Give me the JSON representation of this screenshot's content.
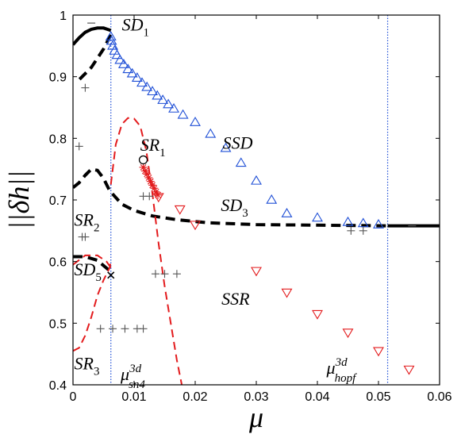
{
  "chart_data": {
    "type": "scatter",
    "xlabel": "μ",
    "ylabel": "||δh||",
    "xlim": [
      0,
      0.06
    ],
    "ylim": [
      0.4,
      1.0
    ],
    "xticks": [
      0,
      0.01,
      0.02,
      0.03,
      0.04,
      0.05,
      0.06
    ],
    "xtick_labels": [
      "0",
      "0.01",
      "0.02",
      "0.03",
      "0.04",
      "0.05",
      "0.06"
    ],
    "yticks": [
      0.4,
      0.5,
      0.6,
      0.7,
      0.8,
      0.9,
      1.0
    ],
    "ytick_labels": [
      "0.4",
      "0.5",
      "0.6",
      "0.7",
      "0.8",
      "0.9",
      "1"
    ],
    "grid": false,
    "curves": [
      {
        "style": "solid",
        "color": "#000000",
        "points": [
          [
            0.0,
            0.952
          ],
          [
            0.001,
            0.963
          ],
          [
            0.002,
            0.972
          ],
          [
            0.003,
            0.977
          ],
          [
            0.004,
            0.979
          ],
          [
            0.005,
            0.979
          ],
          [
            0.0062,
            0.975
          ]
        ]
      },
      {
        "style": "dashed",
        "color": "#000000",
        "points": [
          [
            0.0062,
            0.968
          ],
          [
            0.005,
            0.945
          ],
          [
            0.004,
            0.93
          ],
          [
            0.003,
            0.915
          ],
          [
            0.0015,
            0.9
          ],
          [
            0.0005,
            0.89
          ]
        ]
      },
      {
        "style": "dashed",
        "color": "#000000",
        "points": [
          [
            0.0,
            0.72
          ],
          [
            0.001,
            0.728
          ],
          [
            0.002,
            0.74
          ],
          [
            0.003,
            0.75
          ],
          [
            0.004,
            0.748
          ],
          [
            0.005,
            0.735
          ],
          [
            0.006,
            0.715
          ],
          [
            0.008,
            0.693
          ],
          [
            0.01,
            0.683
          ],
          [
            0.013,
            0.674
          ],
          [
            0.017,
            0.668
          ],
          [
            0.022,
            0.663
          ],
          [
            0.03,
            0.66
          ],
          [
            0.04,
            0.659
          ],
          [
            0.0515,
            0.658
          ]
        ]
      },
      {
        "style": "solid",
        "color": "#000000",
        "points": [
          [
            0.0515,
            0.658
          ],
          [
            0.06,
            0.658
          ]
        ]
      },
      {
        "style": "dashed",
        "color": "#000000",
        "points": [
          [
            0.0,
            0.608
          ],
          [
            0.002,
            0.608
          ],
          [
            0.004,
            0.602
          ],
          [
            0.006,
            0.585
          ]
        ]
      },
      {
        "style": "dashed",
        "color": "#e31a1c",
        "points": [
          [
            0.0062,
            0.725
          ],
          [
            0.007,
            0.79
          ],
          [
            0.008,
            0.823
          ],
          [
            0.009,
            0.833
          ],
          [
            0.01,
            0.832
          ],
          [
            0.011,
            0.82
          ],
          [
            0.012,
            0.78
          ],
          [
            0.013,
            0.71
          ],
          [
            0.014,
            0.63
          ],
          [
            0.015,
            0.56
          ],
          [
            0.016,
            0.5
          ],
          [
            0.017,
            0.44
          ],
          [
            0.0178,
            0.4
          ]
        ]
      },
      {
        "style": "dashed",
        "color": "#e31a1c",
        "points": [
          [
            0.0,
            0.455
          ],
          [
            0.001,
            0.46
          ],
          [
            0.002,
            0.48
          ],
          [
            0.003,
            0.51
          ],
          [
            0.004,
            0.545
          ],
          [
            0.005,
            0.57
          ],
          [
            0.006,
            0.59
          ],
          [
            0.0062,
            0.6
          ]
        ]
      },
      {
        "style": "dashed",
        "color": "#e31a1c",
        "points": [
          [
            0.0,
            0.595
          ],
          [
            0.002,
            0.61
          ],
          [
            0.004,
            0.61
          ],
          [
            0.0055,
            0.6
          ],
          [
            0.0062,
            0.59
          ]
        ]
      }
    ],
    "series": [
      {
        "marker": "triangle-up",
        "color": "#1f4fd6",
        "points": [
          [
            0.0062,
            0.965
          ],
          [
            0.0063,
            0.958
          ],
          [
            0.0065,
            0.95
          ],
          [
            0.0068,
            0.942
          ],
          [
            0.0072,
            0.935
          ],
          [
            0.0077,
            0.927
          ],
          [
            0.0083,
            0.92
          ],
          [
            0.009,
            0.912
          ],
          [
            0.0097,
            0.905
          ],
          [
            0.0105,
            0.898
          ],
          [
            0.0113,
            0.89
          ],
          [
            0.0121,
            0.883
          ],
          [
            0.013,
            0.876
          ],
          [
            0.0138,
            0.869
          ],
          [
            0.0147,
            0.862
          ],
          [
            0.0156,
            0.855
          ],
          [
            0.0165,
            0.848
          ],
          [
            0.018,
            0.838
          ],
          [
            0.02,
            0.826
          ],
          [
            0.0225,
            0.807
          ],
          [
            0.025,
            0.784
          ],
          [
            0.0275,
            0.76
          ],
          [
            0.03,
            0.731
          ],
          [
            0.0325,
            0.7
          ],
          [
            0.035,
            0.678
          ],
          [
            0.04,
            0.671
          ],
          [
            0.045,
            0.664
          ],
          [
            0.0475,
            0.662
          ],
          [
            0.05,
            0.66
          ]
        ]
      },
      {
        "marker": "asterisk",
        "color": "#e31a1c",
        "points": [
          [
            0.0115,
            0.753
          ],
          [
            0.0118,
            0.747
          ],
          [
            0.0121,
            0.742
          ],
          [
            0.0124,
            0.736
          ],
          [
            0.0127,
            0.73
          ],
          [
            0.013,
            0.724
          ],
          [
            0.0133,
            0.719
          ],
          [
            0.0136,
            0.713
          ],
          [
            0.0139,
            0.708
          ]
        ]
      },
      {
        "marker": "triangle-down",
        "color": "#e31a1c",
        "points": [
          [
            0.014,
            0.705
          ],
          [
            0.0175,
            0.685
          ],
          [
            0.02,
            0.66
          ],
          [
            0.03,
            0.585
          ],
          [
            0.035,
            0.55
          ],
          [
            0.04,
            0.515
          ],
          [
            0.045,
            0.485
          ],
          [
            0.05,
            0.455
          ],
          [
            0.055,
            0.425
          ]
        ]
      },
      {
        "marker": "circle",
        "color": "#000000",
        "points": [
          [
            0.0115,
            0.765
          ]
        ]
      },
      {
        "marker": "x",
        "color": "#000000",
        "points": [
          [
            0.0062,
            0.578
          ]
        ]
      },
      {
        "marker": "plus",
        "color": "#555555",
        "points": [
          [
            0.002,
            0.882
          ],
          [
            0.001,
            0.787
          ],
          [
            0.0015,
            0.64
          ],
          [
            0.002,
            0.64
          ],
          [
            0.0115,
            0.706
          ],
          [
            0.0125,
            0.706
          ],
          [
            0.0135,
            0.58
          ],
          [
            0.015,
            0.58
          ],
          [
            0.017,
            0.58
          ],
          [
            0.0045,
            0.491
          ],
          [
            0.0065,
            0.491
          ],
          [
            0.0085,
            0.491
          ],
          [
            0.0105,
            0.491
          ],
          [
            0.0115,
            0.491
          ],
          [
            0.0455,
            0.65
          ],
          [
            0.0475,
            0.65
          ]
        ]
      },
      {
        "marker": "minus",
        "color": "#555555",
        "points": [
          [
            0.003,
            0.987
          ],
          [
            0.0555,
            0.658
          ]
        ]
      }
    ],
    "vlines": [
      {
        "x": 0.0062,
        "color": "#1f4fd6",
        "style": "dotted"
      },
      {
        "x": 0.0515,
        "color": "#1f4fd6",
        "style": "dotted"
      }
    ],
    "annotations": [
      {
        "base": "SD",
        "sub": "1",
        "sup": "",
        "x": 0.008,
        "y": 0.975
      },
      {
        "base": "SSD",
        "sub": "",
        "sup": "",
        "x": 0.0245,
        "y": 0.783
      },
      {
        "base": "SR",
        "sub": "1",
        "sup": "",
        "x": 0.011,
        "y": 0.78
      },
      {
        "base": "SD",
        "sub": "3",
        "sup": "",
        "x": 0.0242,
        "y": 0.682
      },
      {
        "base": "SR",
        "sub": "2",
        "sup": "",
        "x": 0.0002,
        "y": 0.658
      },
      {
        "base": "SD",
        "sub": "5",
        "sup": "",
        "x": 0.0002,
        "y": 0.578
      },
      {
        "base": "SSR",
        "sub": "",
        "sup": "",
        "x": 0.0243,
        "y": 0.53
      },
      {
        "base": "SR",
        "sub": "3",
        "sup": "",
        "x": 0.0002,
        "y": 0.425
      },
      {
        "base": "μ",
        "sub": "sn4",
        "sup": "3d",
        "x": 0.0078,
        "y": 0.408
      },
      {
        "base": "μ",
        "sub": "hopf",
        "sup": "3d",
        "x": 0.0415,
        "y": 0.418
      }
    ]
  }
}
